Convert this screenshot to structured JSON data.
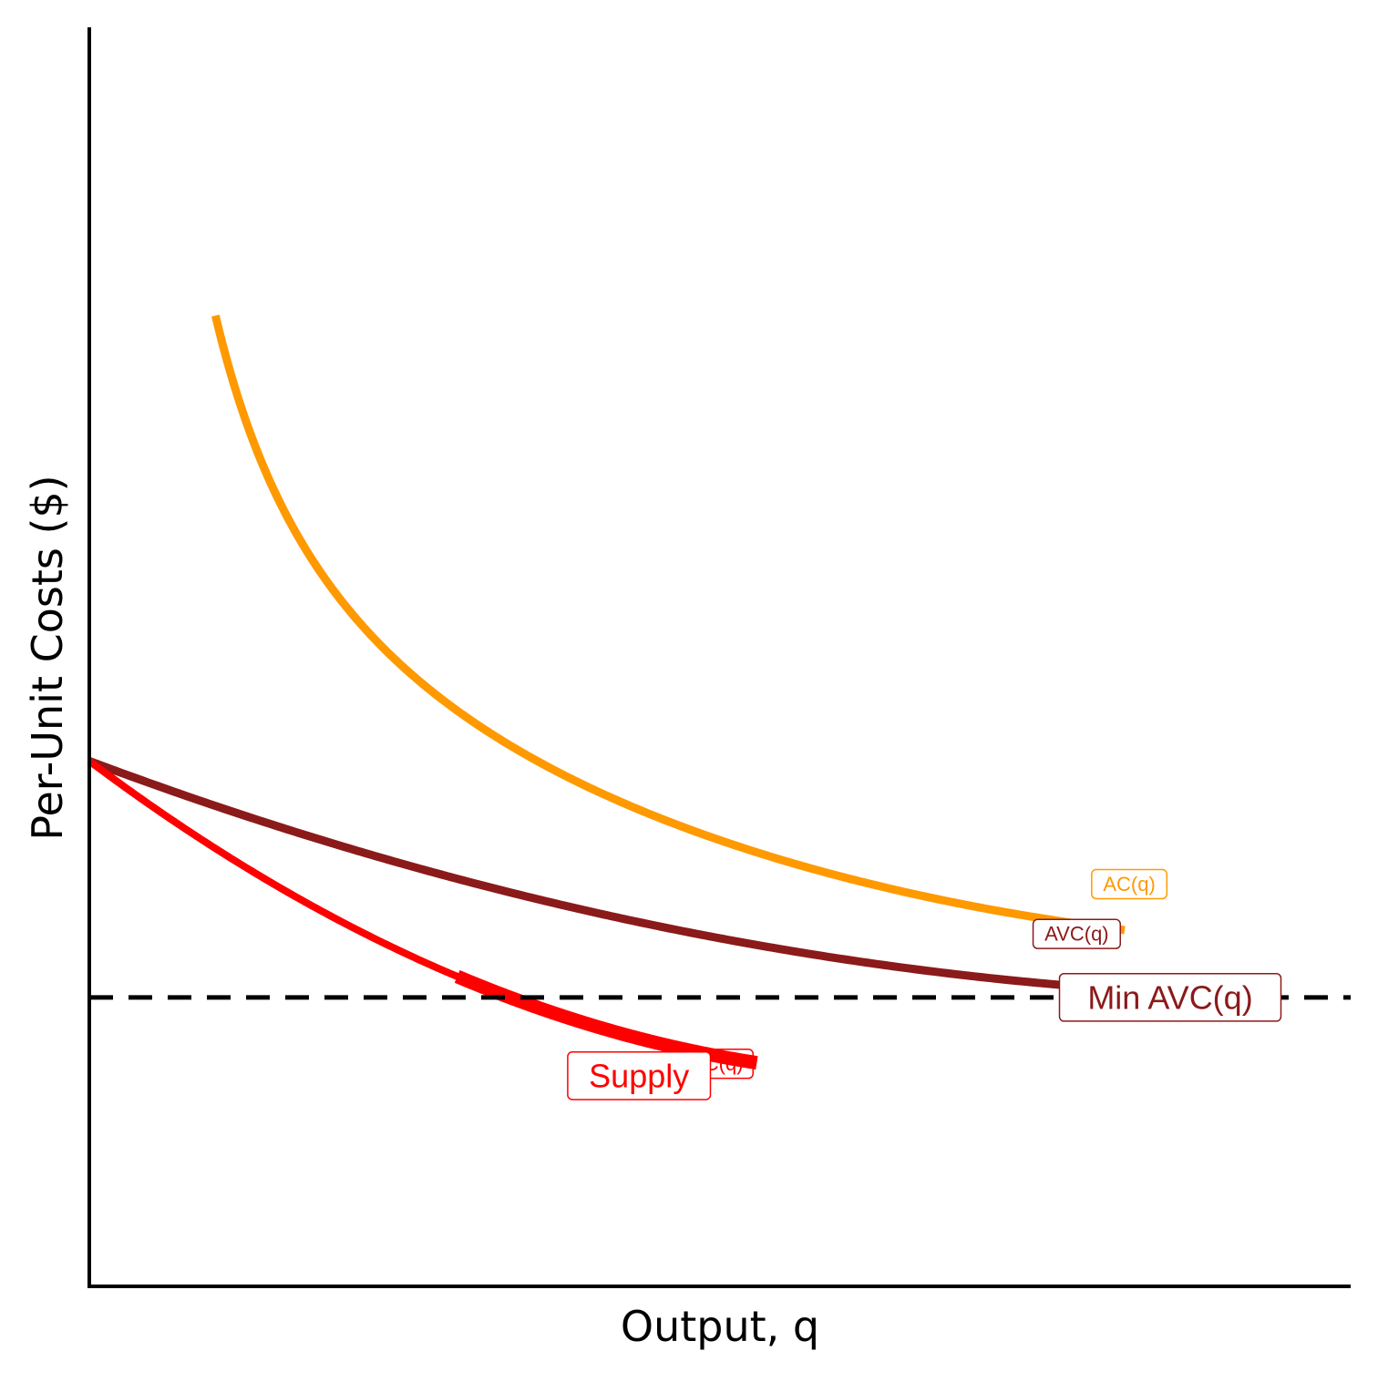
{
  "chart_data": {
    "type": "line",
    "title": "",
    "xlabel": "Output, q",
    "ylabel": "Per-Unit Costs ($)",
    "xlim": [
      0,
      12
    ],
    "ylim": [
      0,
      12
    ],
    "grid": false,
    "ticks": "none",
    "colors": {
      "mc": "#FF0000",
      "ac": "#FF9900",
      "avc": "#8B1A1A",
      "supply": "#FF0000",
      "min_avc_line": "#000000",
      "axis": "#000000"
    },
    "series": [
      {
        "name": "MC(q)",
        "label": "MC(q)",
        "formula": "MC(q) = 3q^2/64 - 3q/4 + 5",
        "domain": [
          0,
          6.35
        ]
      },
      {
        "name": "AC(q)",
        "label": "AC(q)",
        "formula": "AC(q) = q^2/64 - 3q/8 + 5 + 5.6/q",
        "domain": [
          1.2,
          9.85
        ]
      },
      {
        "name": "AVC(q)",
        "label": "AVC(q)",
        "formula": "AVC(q) = q^2/64 - 3q/8 + 5",
        "domain": [
          0,
          10.2
        ]
      },
      {
        "name": "Supply",
        "label": "Supply",
        "formula": "MC(q) for q >= 3.5",
        "domain": [
          3.5,
          6.35
        ]
      }
    ],
    "reference_lines": [
      {
        "label": "Min AVC(q)",
        "orientation": "horizontal",
        "y": 2.75,
        "style": "dashed"
      }
    ],
    "annotations": [
      {
        "text": "MC(q)",
        "series": "MC(q)",
        "at_x": 6.0
      },
      {
        "text": "AC(q)",
        "series": "AC(q)",
        "at_x": 9.2
      },
      {
        "text": "AVC(q)",
        "series": "AVC(q)",
        "at_x": 8.7
      },
      {
        "text": "Supply",
        "series": "Supply",
        "at_x": 5.1
      }
    ]
  }
}
